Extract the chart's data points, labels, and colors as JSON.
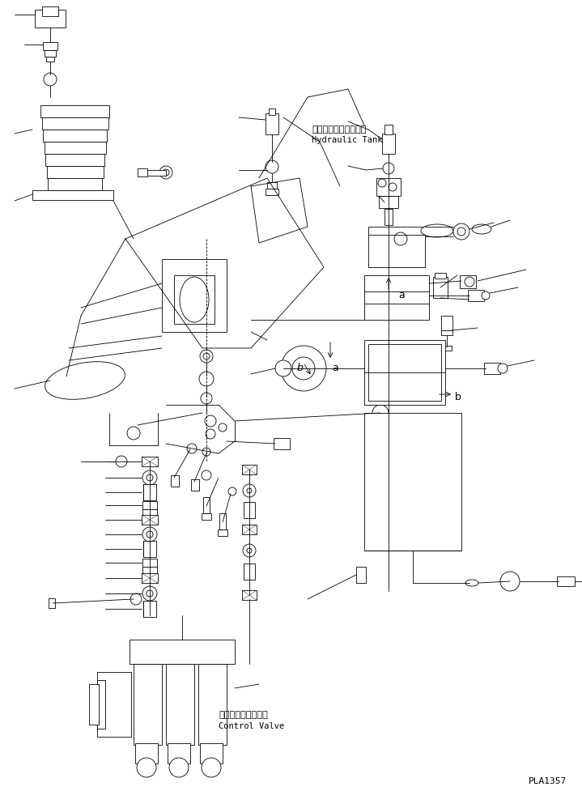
{
  "bg_color": "#ffffff",
  "line_color": "#000000",
  "fig_width": 7.19,
  "fig_height": 9.77,
  "dpi": 100,
  "title_text": "PLA1357",
  "hydraulic_tank_jp": "ハイドロリックタンク",
  "hydraulic_tank_en": "Hydraulic Tank",
  "control_valve_jp": "コントロールバルブ",
  "control_valve_en": "Control Valve"
}
